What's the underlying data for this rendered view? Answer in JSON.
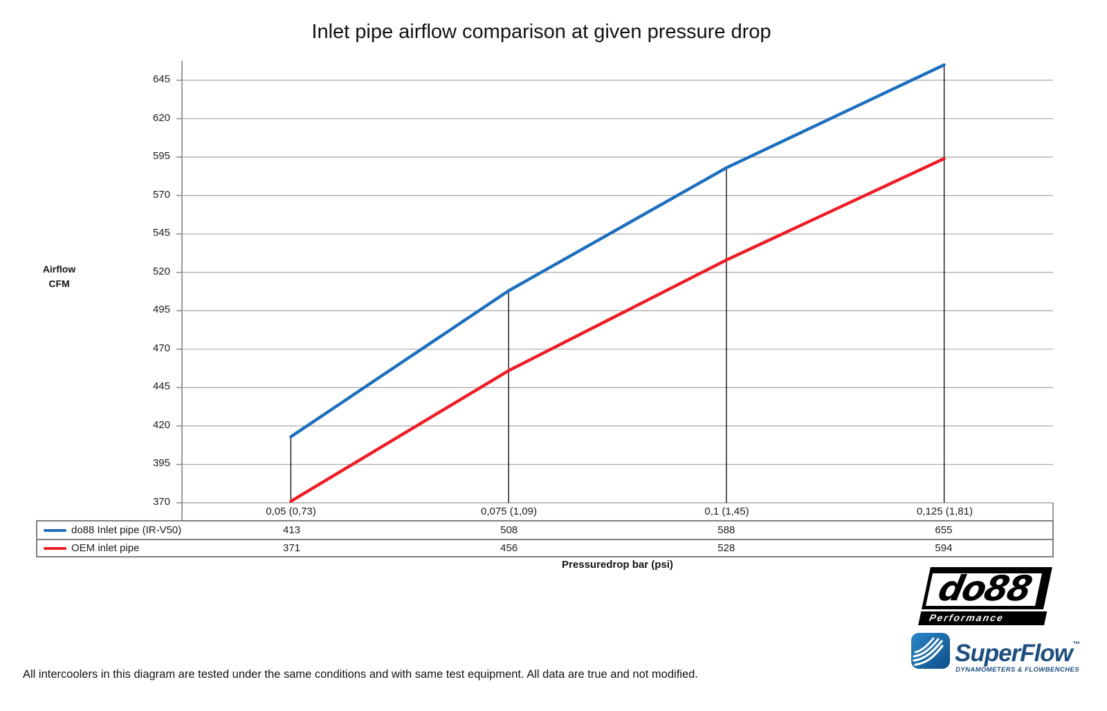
{
  "title": "Inlet pipe airflow comparison at given pressure drop",
  "y_axis": {
    "label_line1": "Airflow",
    "label_line2": "CFM"
  },
  "x_axis": {
    "label": "Pressuredrop bar (psi)"
  },
  "chart_data": {
    "type": "line",
    "categories": [
      "0,05 (0,73)",
      "0,075 (1,09)",
      "0,1 (1,45)",
      "0,125 (1,81)"
    ],
    "series": [
      {
        "name": "do88 Inlet pipe (IR-V50)",
        "color": "#1d6fbe",
        "values": [
          413,
          508,
          588,
          655
        ]
      },
      {
        "name": "OEM inlet pipe",
        "color": "#ee1c25",
        "values": [
          371,
          456,
          528,
          594
        ]
      }
    ],
    "title": "Inlet pipe airflow comparison at given pressure drop",
    "xlabel": "Pressuredrop bar (psi)",
    "ylabel": "Airflow CFM",
    "ylim": [
      370,
      645
    ],
    "ytick_step": 25,
    "yticks": [
      370,
      395,
      420,
      445,
      470,
      495,
      520,
      545,
      570,
      595,
      620,
      645
    ],
    "grid": true,
    "legend_position": "table-left",
    "drop_lines": true
  },
  "colors": {
    "gridline": "#a6a6a6",
    "axis": "#808080",
    "table_border": "#7f7f7f",
    "drop_line": "#000000",
    "series_blue": "#1d6fbe",
    "series_red": "#ee1c25",
    "superflow_blue": "#1d4e7f"
  },
  "do88_logo": {
    "text": "do88",
    "subtitle": "Performance"
  },
  "superflow_logo": {
    "text": "SuperFlow",
    "tm": "™",
    "subtitle": "DYNAMOMETERS & FLOWBENCHES"
  },
  "footer": {
    "note": "All intercoolers in this diagram are tested under the same conditions and with same test equipment. All data are true and not modified."
  }
}
